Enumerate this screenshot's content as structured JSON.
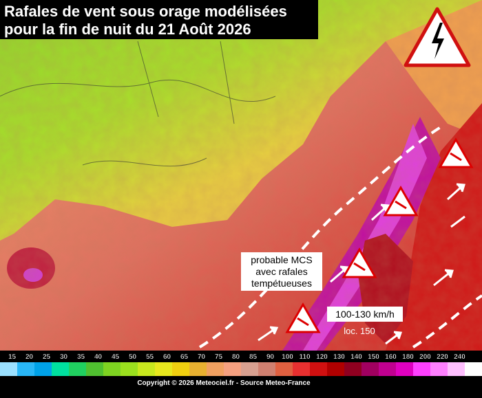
{
  "header": {
    "title_lines": [
      "Rafales de vent sous orage modélisées",
      "pour la fin de nuit du 21 Août 2026"
    ]
  },
  "annotations": {
    "mcs": [
      "probable MCS",
      "avec rafales",
      "tempétueuses"
    ],
    "speed": "100-130 km/h",
    "local": "loc. 150"
  },
  "legend": {
    "labels": [
      15,
      20,
      25,
      30,
      35,
      40,
      45,
      50,
      55,
      60,
      65,
      70,
      75,
      80,
      85,
      90,
      100,
      110,
      120,
      130,
      140,
      150,
      160,
      180,
      200,
      220,
      240
    ],
    "colors": [
      "#9be0ff",
      "#29b6f6",
      "#00a2e8",
      "#00e0a0",
      "#20d060",
      "#50c030",
      "#7ed321",
      "#9be01e",
      "#c8e81e",
      "#e8e81e",
      "#f0d010",
      "#e8b030",
      "#f0a060",
      "#f5a080",
      "#d8a090",
      "#d08070",
      "#e06040",
      "#e83030",
      "#d01010",
      "#b00000",
      "#900020",
      "#a00060",
      "#c00090",
      "#e000c0",
      "#ff40ff",
      "#ff80ff",
      "#ffc0ff",
      "#ffffff"
    ]
  },
  "footer": {
    "copyright": "Copyright © 2026 Meteociel.fr - Source Meteo-France"
  }
}
